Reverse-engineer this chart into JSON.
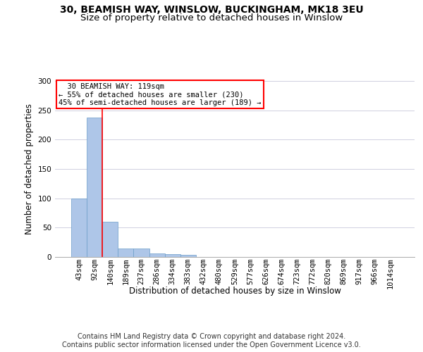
{
  "title1": "30, BEAMISH WAY, WINSLOW, BUCKINGHAM, MK18 3EU",
  "title2": "Size of property relative to detached houses in Winslow",
  "xlabel": "Distribution of detached houses by size in Winslow",
  "ylabel": "Number of detached properties",
  "footnote1": "Contains HM Land Registry data © Crown copyright and database right 2024.",
  "footnote2": "Contains public sector information licensed under the Open Government Licence v3.0.",
  "bin_labels": [
    "43sqm",
    "92sqm",
    "140sqm",
    "189sqm",
    "237sqm",
    "286sqm",
    "334sqm",
    "383sqm",
    "432sqm",
    "480sqm",
    "529sqm",
    "577sqm",
    "626sqm",
    "674sqm",
    "723sqm",
    "772sqm",
    "820sqm",
    "869sqm",
    "917sqm",
    "966sqm",
    "1014sqm"
  ],
  "bar_values": [
    100,
    238,
    60,
    15,
    15,
    6,
    5,
    4,
    0,
    0,
    0,
    0,
    0,
    0,
    0,
    0,
    0,
    0,
    0,
    0,
    0
  ],
  "bar_color": "#aec6e8",
  "bar_edge_color": "#6b9dc8",
  "grid_color": "#d0d0e0",
  "annotation_line1": "  30 BEAMISH WAY: 119sqm",
  "annotation_line2": "← 55% of detached houses are smaller (230)",
  "annotation_line3": "45% of semi-detached houses are larger (189) →",
  "red_line_x": 1.5,
  "ylim": [
    0,
    300
  ],
  "yticks": [
    0,
    50,
    100,
    150,
    200,
    250,
    300
  ],
  "annotation_box_facecolor": "white",
  "annotation_box_edgecolor": "red",
  "red_line_color": "red",
  "title1_fontsize": 10,
  "title2_fontsize": 9.5,
  "axis_label_fontsize": 8.5,
  "tick_fontsize": 7.5,
  "annotation_fontsize": 7.5,
  "footnote_fontsize": 7
}
